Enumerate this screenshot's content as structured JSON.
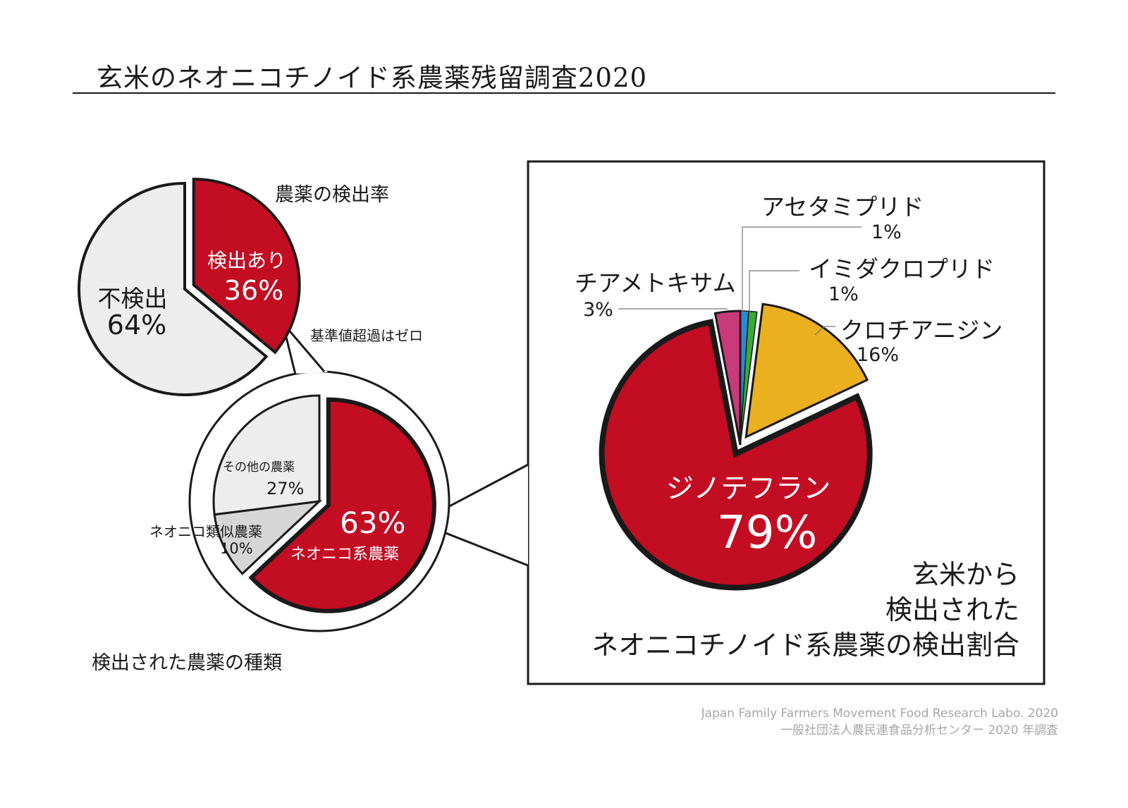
{
  "title": "玄米のネオニコチノイド系農薬残留調査2020",
  "colors": {
    "red": "#c30d23",
    "gray": "#ededed",
    "yellow": "#eab020",
    "pink": "#c93a7b",
    "blue": "#2a8ad4",
    "green": "#3aaa35"
  },
  "chart_data": [
    {
      "type": "pie",
      "title": "農薬の検出率",
      "note": "基準値超過はゼロ",
      "slices": [
        {
          "label": "検出あり",
          "value": 36,
          "value_label": "36%",
          "color": "#c30d23"
        },
        {
          "label": "不検出",
          "value": 64,
          "value_label": "64%",
          "color": "#ededed"
        }
      ]
    },
    {
      "type": "pie",
      "title": "検出された農薬の種類",
      "slices": [
        {
          "label": "ネオニコ系農薬",
          "value": 63,
          "value_label": "63%",
          "color": "#c30d23"
        },
        {
          "label": "ネオニコ類似農薬",
          "value": 10,
          "value_label": "10%",
          "color": "#d6d6d6"
        },
        {
          "label": "その他の農薬",
          "value": 27,
          "value_label": "27%",
          "color": "#ededed"
        }
      ]
    },
    {
      "type": "pie",
      "title": "玄米から\n検出された\nネオニコチノイド系農薬の検出割合",
      "title_lines": [
        "玄米から",
        "検出された",
        "ネオニコチノイド系農薬の検出割合"
      ],
      "slices": [
        {
          "label": "アセタミプリド",
          "value": 1,
          "value_label": "1%",
          "color": "#2a8ad4"
        },
        {
          "label": "イミダクロプリド",
          "value": 1,
          "value_label": "1%",
          "color": "#3aaa35"
        },
        {
          "label": "クロチアニジン",
          "value": 16,
          "value_label": "16%",
          "color": "#eab020"
        },
        {
          "label": "ジノテフラン",
          "value": 79,
          "value_label": "79%",
          "color": "#c30d23"
        },
        {
          "label": "チアメトキサム",
          "value": 3,
          "value_label": "3%",
          "color": "#c93a7b"
        }
      ]
    }
  ],
  "credit": {
    "line1": "Japan Family Farmers Movement Food Research Labo. 2020",
    "line2": "一般社団法人農民連食品分析センター 2020 年調査"
  }
}
